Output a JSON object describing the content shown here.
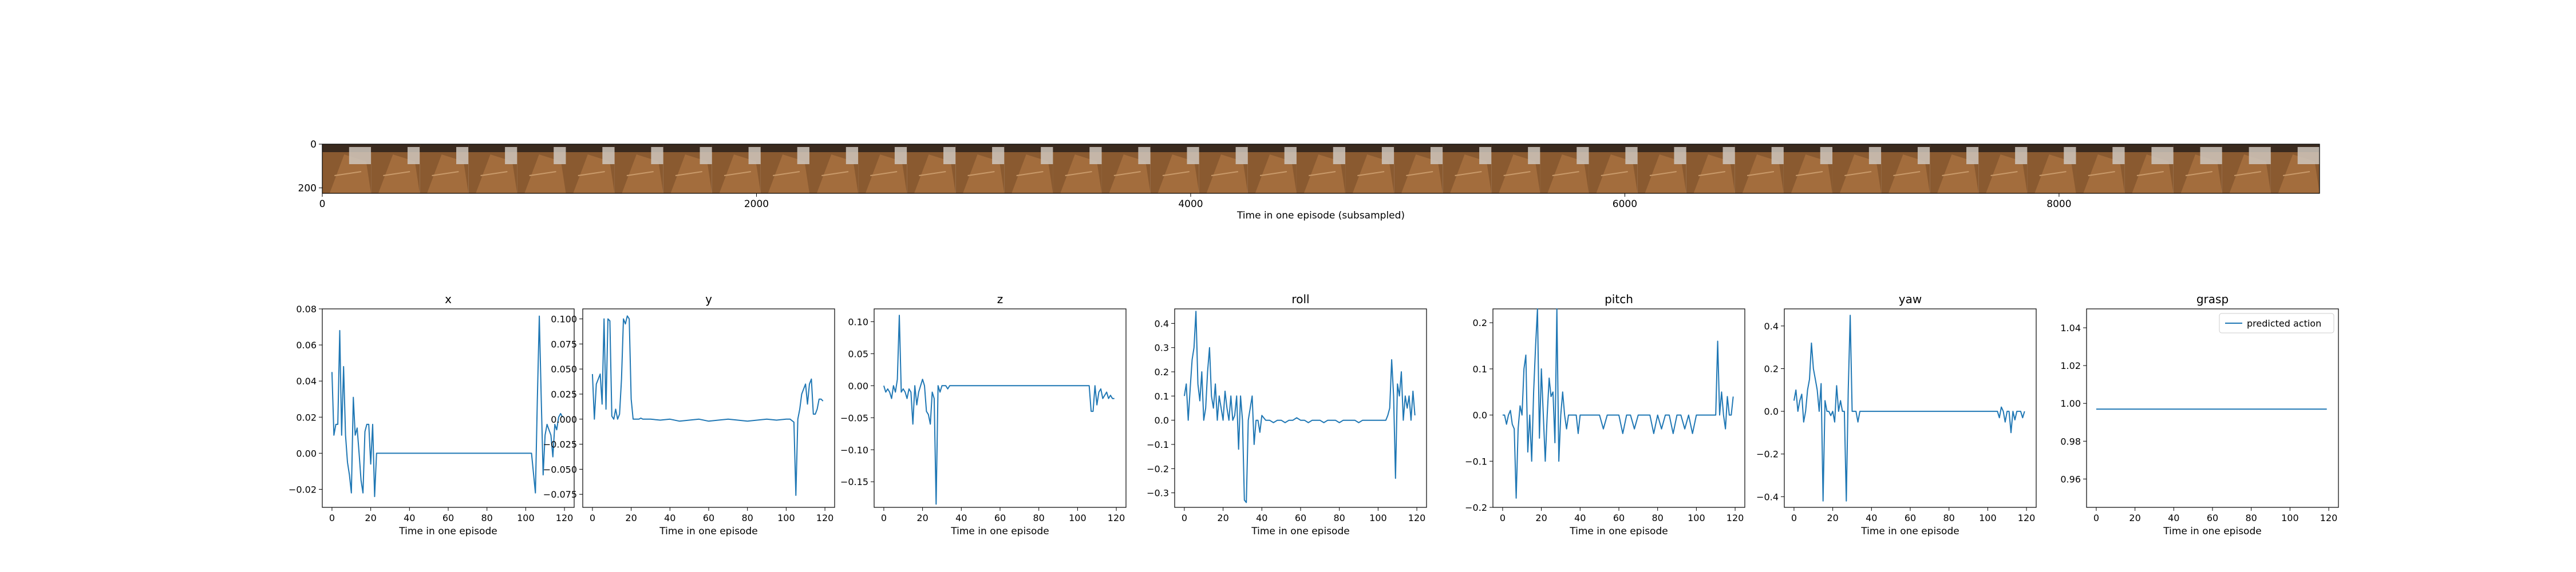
{
  "strip": {
    "xlabel": "Time in one episode (subsampled)",
    "xticks": [
      0,
      2000,
      4000,
      6000,
      8000
    ],
    "yticks": [
      0,
      200
    ],
    "xlim": [
      0,
      9200
    ],
    "ylim": [
      0,
      225
    ],
    "frame_count": 41,
    "image_description_colors": {
      "wood": "#8a5a30",
      "dark": "#3a2a1e",
      "light": "#cfc7bd"
    }
  },
  "chart_data": [
    {
      "type": "line",
      "title": "x",
      "xlabel": "Time in one episode",
      "xlim": [
        -5,
        125
      ],
      "ylim": [
        -0.03,
        0.08
      ],
      "yticks": [
        -0.02,
        0.0,
        0.02,
        0.04,
        0.06,
        0.08
      ],
      "ytick_labels": [
        "−0.02",
        "0.00",
        "0.02",
        "0.04",
        "0.06",
        "0.08"
      ],
      "xticks": [
        0,
        20,
        40,
        60,
        80,
        100,
        120
      ],
      "x": [
        0,
        1,
        2,
        3,
        4,
        5,
        6,
        7,
        8,
        9,
        10,
        11,
        12,
        13,
        14,
        15,
        16,
        17,
        18,
        19,
        20,
        21,
        22,
        23,
        24,
        25,
        26,
        27,
        28,
        29,
        30,
        31,
        32,
        33,
        34,
        35,
        36,
        37,
        38,
        39,
        40,
        45,
        50,
        55,
        60,
        65,
        70,
        75,
        80,
        85,
        90,
        95,
        100,
        103,
        105,
        106,
        107,
        108,
        109,
        110,
        111,
        112,
        113,
        114,
        115,
        116,
        117,
        118,
        119
      ],
      "series": [
        {
          "color": "#1f77b4",
          "values": [
            0.045,
            0.01,
            0.016,
            0.016,
            0.068,
            0.01,
            0.048,
            0.01,
            -0.005,
            -0.012,
            -0.022,
            0.031,
            0.01,
            0.014,
            0.0,
            -0.015,
            -0.022,
            0.012,
            0.016,
            0.016,
            -0.006,
            0.016,
            -0.024,
            0.0,
            0.0,
            0.0,
            0.0,
            0.0,
            0.0,
            0.0,
            0.0,
            0.0,
            0.0,
            0.0,
            0.0,
            0.0,
            0.0,
            0.0,
            0.0,
            0.0,
            0.0,
            0.0,
            0.0,
            0.0,
            0.0,
            0.0,
            0.0,
            0.0,
            0.0,
            0.0,
            0.0,
            0.0,
            0.0,
            0.0,
            -0.022,
            0.03,
            0.076,
            0.03,
            -0.012,
            0.01,
            0.016,
            0.013,
            0.01,
            -0.002,
            0.016,
            0.013,
            0.02,
            0.022,
            0.02
          ]
        }
      ]
    },
    {
      "type": "line",
      "title": "y",
      "xlabel": "Time in one episode",
      "xlim": [
        -5,
        125
      ],
      "ylim": [
        -0.088,
        0.11
      ],
      "yticks": [
        -0.075,
        -0.05,
        -0.025,
        0.0,
        0.025,
        0.05,
        0.075,
        0.1
      ],
      "ytick_labels": [
        "−0.075",
        "−0.050",
        "−0.025",
        "0.000",
        "0.025",
        "0.050",
        "0.075",
        "0.100"
      ],
      "xticks": [
        0,
        20,
        40,
        60,
        80,
        100,
        120
      ],
      "x": [
        0,
        1,
        2,
        3,
        4,
        5,
        6,
        7,
        8,
        9,
        10,
        11,
        12,
        13,
        14,
        15,
        16,
        17,
        18,
        19,
        20,
        21,
        22,
        23,
        24,
        25,
        26,
        27,
        28,
        29,
        30,
        35,
        40,
        45,
        50,
        55,
        60,
        65,
        70,
        75,
        80,
        85,
        90,
        95,
        100,
        102,
        104,
        105,
        106,
        107,
        108,
        109,
        110,
        111,
        112,
        113,
        114,
        115,
        116,
        117,
        118,
        119
      ],
      "series": [
        {
          "color": "#1f77b4",
          "values": [
            0.045,
            0.0,
            0.035,
            0.04,
            0.045,
            0.015,
            0.1,
            0.01,
            0.1,
            0.098,
            0.003,
            0.0,
            0.01,
            0.0,
            0.005,
            0.04,
            0.1,
            0.095,
            0.103,
            0.1,
            0.02,
            0.0,
            0.0,
            0.0,
            0.0,
            0.001,
            0.0,
            0.0,
            0.0,
            0.0,
            0.0,
            -0.001,
            0.0,
            -0.002,
            -0.001,
            0.0,
            -0.002,
            -0.001,
            0.0,
            -0.001,
            -0.002,
            -0.001,
            0.0,
            -0.001,
            0.0,
            0.0,
            -0.003,
            -0.076,
            0.0,
            0.01,
            0.025,
            0.03,
            0.035,
            0.015,
            0.035,
            0.04,
            0.005,
            0.005,
            0.01,
            0.02,
            0.02,
            0.018
          ]
        }
      ]
    },
    {
      "type": "line",
      "title": "z",
      "xlabel": "Time in one episode",
      "xlim": [
        -5,
        125
      ],
      "ylim": [
        -0.19,
        0.12
      ],
      "yticks": [
        -0.15,
        -0.1,
        -0.05,
        0.0,
        0.05,
        0.1
      ],
      "ytick_labels": [
        "−0.15",
        "−0.10",
        "−0.05",
        "0.00",
        "0.05",
        "0.10"
      ],
      "xticks": [
        0,
        20,
        40,
        60,
        80,
        100,
        120
      ],
      "x": [
        0,
        1,
        2,
        3,
        4,
        5,
        6,
        7,
        8,
        9,
        10,
        11,
        12,
        13,
        14,
        15,
        16,
        17,
        18,
        19,
        20,
        21,
        22,
        23,
        24,
        25,
        26,
        27,
        28,
        29,
        30,
        31,
        32,
        33,
        34,
        35,
        40,
        45,
        50,
        55,
        60,
        65,
        70,
        75,
        80,
        85,
        90,
        95,
        100,
        103,
        105,
        106,
        107,
        108,
        109,
        110,
        111,
        112,
        113,
        114,
        115,
        116,
        117,
        118,
        119
      ],
      "series": [
        {
          "color": "#1f77b4",
          "values": [
            0.0,
            -0.01,
            -0.005,
            -0.01,
            -0.02,
            0.0,
            -0.01,
            0.01,
            0.11,
            -0.01,
            -0.005,
            -0.01,
            -0.02,
            -0.005,
            -0.01,
            -0.06,
            0.0,
            -0.03,
            -0.01,
            0.0,
            0.01,
            0.0,
            -0.04,
            -0.045,
            -0.06,
            -0.01,
            -0.02,
            -0.185,
            0.0,
            -0.01,
            0.0,
            0.0,
            0.0,
            -0.005,
            0.0,
            0.0,
            0.0,
            0.0,
            0.0,
            0.0,
            0.0,
            0.0,
            0.0,
            0.0,
            0.0,
            0.0,
            0.0,
            0.0,
            0.0,
            0.0,
            0.0,
            0.0,
            -0.04,
            -0.04,
            0.0,
            -0.03,
            -0.01,
            -0.005,
            -0.02,
            -0.015,
            -0.01,
            -0.02,
            -0.015,
            -0.02,
            -0.02
          ]
        }
      ]
    },
    {
      "type": "line",
      "title": "roll",
      "xlabel": "Time in one episode",
      "xlim": [
        -5,
        125
      ],
      "ylim": [
        -0.36,
        0.46
      ],
      "yticks": [
        -0.3,
        -0.2,
        -0.1,
        0.0,
        0.1,
        0.2,
        0.3,
        0.4
      ],
      "ytick_labels": [
        "−0.3",
        "−0.2",
        "−0.1",
        "0.0",
        "0.1",
        "0.2",
        "0.3",
        "0.4"
      ],
      "xticks": [
        0,
        20,
        40,
        60,
        80,
        100,
        120
      ],
      "x": [
        0,
        1,
        2,
        3,
        4,
        5,
        6,
        7,
        8,
        9,
        10,
        11,
        12,
        13,
        14,
        15,
        16,
        17,
        18,
        19,
        20,
        21,
        22,
        23,
        24,
        25,
        26,
        27,
        28,
        29,
        30,
        31,
        32,
        33,
        34,
        35,
        36,
        37,
        38,
        39,
        40,
        42,
        44,
        46,
        48,
        50,
        52,
        54,
        56,
        58,
        60,
        62,
        64,
        66,
        68,
        70,
        72,
        74,
        76,
        78,
        80,
        82,
        84,
        86,
        88,
        90,
        92,
        94,
        96,
        98,
        100,
        102,
        104,
        105,
        106,
        107,
        108,
        109,
        110,
        111,
        112,
        113,
        114,
        115,
        116,
        117,
        118,
        119
      ],
      "series": [
        {
          "color": "#1f77b4",
          "values": [
            0.1,
            0.15,
            0.0,
            0.13,
            0.25,
            0.3,
            0.45,
            0.15,
            0.08,
            0.2,
            0.0,
            0.05,
            0.2,
            0.3,
            0.1,
            0.05,
            0.15,
            0.0,
            0.1,
            0.05,
            0.0,
            0.12,
            0.05,
            0.0,
            0.1,
            0.0,
            0.02,
            0.1,
            -0.12,
            0.1,
            0.0,
            -0.33,
            -0.34,
            0.0,
            0.05,
            0.1,
            -0.1,
            0.0,
            0.0,
            -0.05,
            0.02,
            0.0,
            0.0,
            -0.01,
            0.0,
            0.0,
            -0.01,
            0.0,
            0.0,
            0.01,
            0.0,
            0.0,
            -0.01,
            0.0,
            0.0,
            0.0,
            -0.01,
            0.0,
            0.0,
            0.0,
            -0.01,
            0.0,
            0.0,
            0.0,
            0.0,
            -0.01,
            0.0,
            0.0,
            0.0,
            0.0,
            0.0,
            0.0,
            0.0,
            0.02,
            0.05,
            0.25,
            0.1,
            -0.24,
            0.15,
            0.1,
            0.2,
            0.0,
            0.1,
            0.05,
            0.1,
            0.0,
            0.12,
            0.02
          ]
        }
      ]
    },
    {
      "type": "line",
      "title": "pitch",
      "xlabel": "Time in one episode",
      "xlim": [
        -5,
        125
      ],
      "ylim": [
        -0.2,
        0.23
      ],
      "yticks": [
        -0.2,
        -0.1,
        0.0,
        0.1,
        0.2
      ],
      "ytick_labels": [
        "−0.2",
        "−0.1",
        "0.0",
        "0.1",
        "0.2"
      ],
      "xticks": [
        0,
        20,
        40,
        60,
        80,
        100,
        120
      ],
      "x": [
        0,
        1,
        2,
        3,
        4,
        5,
        6,
        7,
        8,
        9,
        10,
        11,
        12,
        13,
        14,
        15,
        16,
        17,
        18,
        19,
        20,
        21,
        22,
        23,
        24,
        25,
        26,
        27,
        28,
        29,
        30,
        31,
        32,
        33,
        34,
        35,
        36,
        37,
        38,
        39,
        40,
        45,
        50,
        52,
        54,
        56,
        58,
        60,
        62,
        64,
        66,
        68,
        70,
        72,
        74,
        76,
        78,
        80,
        82,
        84,
        86,
        88,
        90,
        92,
        94,
        96,
        98,
        100,
        102,
        104,
        105,
        106,
        107,
        108,
        109,
        110,
        111,
        112,
        113,
        114,
        115,
        116,
        117,
        118,
        119
      ],
      "series": [
        {
          "color": "#1f77b4",
          "values": [
            0.0,
            0.0,
            -0.02,
            0.0,
            0.01,
            -0.02,
            -0.03,
            -0.18,
            -0.03,
            0.02,
            0.0,
            0.1,
            0.13,
            -0.08,
            0.0,
            -0.1,
            0.05,
            0.15,
            0.23,
            -0.05,
            0.1,
            0.0,
            -0.1,
            0.0,
            0.08,
            0.04,
            0.05,
            -0.06,
            0.23,
            -0.1,
            0.0,
            0.05,
            0.0,
            -0.03,
            0.0,
            0.0,
            0.0,
            0.0,
            0.0,
            -0.04,
            0.0,
            0.0,
            0.0,
            -0.03,
            0.0,
            0.0,
            0.0,
            0.0,
            -0.04,
            0.0,
            0.0,
            -0.03,
            0.0,
            0.0,
            0.0,
            0.0,
            -0.04,
            0.0,
            -0.03,
            0.0,
            0.0,
            -0.04,
            0.0,
            0.0,
            -0.03,
            0.0,
            -0.04,
            0.0,
            0.0,
            0.0,
            0.0,
            0.0,
            0.0,
            0.0,
            0.0,
            0.0,
            0.16,
            0.0,
            0.05,
            0.0,
            -0.03,
            0.04,
            0.0,
            0.0,
            0.04
          ]
        }
      ]
    },
    {
      "type": "line",
      "title": "yaw",
      "xlabel": "Time in one episode",
      "xlim": [
        -5,
        125
      ],
      "ylim": [
        -0.45,
        0.48
      ],
      "yticks": [
        -0.4,
        -0.2,
        0.0,
        0.2,
        0.4
      ],
      "ytick_labels": [
        "−0.4",
        "−0.2",
        "0.0",
        "0.2",
        "0.4"
      ],
      "xticks": [
        0,
        20,
        40,
        60,
        80,
        100,
        120
      ],
      "x": [
        0,
        1,
        2,
        3,
        4,
        5,
        6,
        7,
        8,
        9,
        10,
        11,
        12,
        13,
        14,
        15,
        16,
        17,
        18,
        19,
        20,
        21,
        22,
        23,
        24,
        25,
        26,
        27,
        28,
        29,
        30,
        31,
        32,
        33,
        34,
        35,
        40,
        45,
        50,
        55,
        60,
        65,
        70,
        75,
        80,
        85,
        90,
        95,
        100,
        102,
        104,
        105,
        106,
        107,
        108,
        109,
        110,
        111,
        112,
        113,
        114,
        115,
        116,
        117,
        118,
        119
      ],
      "series": [
        {
          "color": "#1f77b4",
          "values": [
            0.05,
            0.1,
            0.0,
            0.05,
            0.08,
            -0.05,
            0.0,
            0.1,
            0.15,
            0.32,
            0.2,
            0.15,
            0.1,
            0.0,
            0.13,
            -0.42,
            0.05,
            0.0,
            0.0,
            -0.02,
            0.0,
            -0.05,
            0.12,
            0.0,
            0.05,
            0.0,
            0.0,
            -0.42,
            0.1,
            0.45,
            0.0,
            0.0,
            0.0,
            -0.05,
            0.0,
            0.0,
            0.0,
            0.0,
            0.0,
            0.0,
            0.0,
            0.0,
            0.0,
            0.0,
            0.0,
            0.0,
            0.0,
            0.0,
            0.0,
            0.0,
            0.0,
            0.0,
            -0.03,
            0.02,
            0.0,
            -0.05,
            0.0,
            0.0,
            -0.1,
            0.0,
            -0.04,
            0.0,
            0.0,
            0.0,
            -0.03,
            0.0
          ]
        }
      ]
    },
    {
      "type": "line",
      "title": "grasp",
      "xlabel": "Time in one episode",
      "xlim": [
        -5,
        125
      ],
      "ylim": [
        0.945,
        1.05
      ],
      "yticks": [
        0.96,
        0.98,
        1.0,
        1.02,
        1.04
      ],
      "ytick_labels": [
        "0.96",
        "0.98",
        "1.00",
        "1.02",
        "1.04"
      ],
      "xticks": [
        0,
        20,
        40,
        60,
        80,
        100,
        120
      ],
      "legend": {
        "label": "predicted action",
        "placement": "top-right"
      },
      "x": [
        0,
        119
      ],
      "series": [
        {
          "name": "predicted action",
          "color": "#1f77b4",
          "values": [
            0.997,
            0.997
          ]
        }
      ]
    }
  ]
}
